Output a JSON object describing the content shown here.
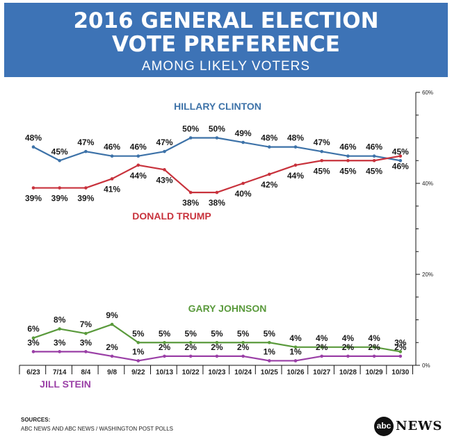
{
  "header": {
    "title_line1": "2016 GENERAL ELECTION",
    "title_line2": "VOTE PREFERENCE",
    "subtitle": "AMONG LIKELY VOTERS"
  },
  "sources": {
    "heading": "SOURCES:",
    "text": "ABC NEWS AND ABC NEWS / WASHINGTON POST POLLS"
  },
  "logo": {
    "disc": "abc",
    "word": "NEWS"
  },
  "colors": {
    "header_bg": "#3d73b6",
    "clinton": "#3d72a8",
    "trump": "#c8323c",
    "johnson": "#5a9a3c",
    "stein": "#9a3fa6"
  },
  "chart_data": {
    "type": "line",
    "categories": [
      "6/23",
      "7/14",
      "8/4",
      "9/8",
      "9/22",
      "10/13",
      "10/22",
      "10/23",
      "10/24",
      "10/25",
      "10/26",
      "10/27",
      "10/28",
      "10/29",
      "10/30"
    ],
    "series": [
      {
        "name": "HILLARY CLINTON",
        "color": "#3d72a8",
        "values": [
          48,
          45,
          47,
          46,
          46,
          47,
          50,
          50,
          49,
          48,
          48,
          47,
          46,
          46,
          45
        ],
        "label_pos": "above"
      },
      {
        "name": "DONALD TRUMP",
        "color": "#c8323c",
        "values": [
          39,
          39,
          39,
          41,
          44,
          43,
          38,
          38,
          40,
          42,
          44,
          45,
          45,
          45,
          46
        ],
        "label_pos": "below"
      },
      {
        "name": "GARY JOHNSON",
        "color": "#5a9a3c",
        "values": [
          6,
          8,
          7,
          9,
          5,
          5,
          5,
          5,
          5,
          5,
          4,
          4,
          4,
          4,
          3
        ],
        "label_pos": "above"
      },
      {
        "name": "JILL STEIN",
        "color": "#9a3fa6",
        "values": [
          3,
          3,
          3,
          2,
          1,
          2,
          2,
          2,
          2,
          1,
          1,
          2,
          2,
          2,
          2
        ],
        "label_pos": "above"
      }
    ],
    "yaxis": {
      "min": 0,
      "max": 60,
      "ticks": [
        "60%",
        "40%",
        "20%",
        "0%"
      ],
      "tick_values": [
        60,
        40,
        20,
        0
      ],
      "side": "right"
    },
    "grid": false,
    "legend": "inline series labels"
  }
}
